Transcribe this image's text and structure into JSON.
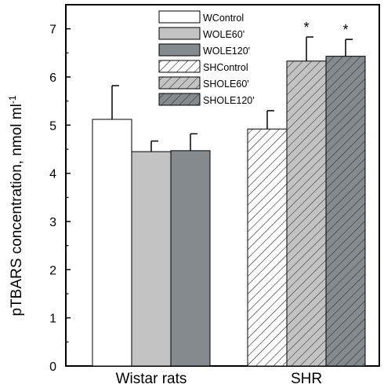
{
  "chart_data": {
    "type": "bar",
    "title": "",
    "xlabel": "",
    "ylabel": "pTBARS concentration, nmol ml",
    "ylabel_superscript": "-1",
    "ylim": [
      0,
      7.5
    ],
    "yticks": [
      "0",
      "1",
      "2",
      "3",
      "4",
      "5",
      "6",
      "7"
    ],
    "categories": [
      "Wistar rats",
      "SHR"
    ],
    "legend_position": "top-center",
    "grid": false,
    "series": [
      {
        "name": "WControl",
        "fill": "#ffffff",
        "pattern": "none",
        "values": [
          5.12,
          null
        ],
        "errors": [
          0.7,
          null
        ],
        "significant": [
          false,
          false
        ]
      },
      {
        "name": "WOLE60'",
        "fill": "#c3c3c3",
        "pattern": "none",
        "values": [
          4.45,
          null
        ],
        "errors": [
          0.22,
          null
        ],
        "significant": [
          false,
          false
        ]
      },
      {
        "name": "WOLE120'",
        "fill": "#858a8f",
        "pattern": "none",
        "values": [
          4.47,
          null
        ],
        "errors": [
          0.35,
          null
        ],
        "significant": [
          false,
          false
        ]
      },
      {
        "name": "SHControl",
        "fill": "#ffffff",
        "pattern": "hatch",
        "values": [
          null,
          4.92
        ],
        "errors": [
          null,
          0.38
        ],
        "significant": [
          false,
          false
        ]
      },
      {
        "name": "SHOLE60'",
        "fill": "#c3c3c3",
        "pattern": "hatch",
        "values": [
          null,
          6.33
        ],
        "errors": [
          null,
          0.5
        ],
        "significant": [
          false,
          true
        ]
      },
      {
        "name": "SHOLE120'",
        "fill": "#858a8f",
        "pattern": "hatch",
        "values": [
          null,
          6.43
        ],
        "errors": [
          null,
          0.35
        ],
        "significant": [
          false,
          true
        ]
      }
    ],
    "significance_marker": "*"
  }
}
